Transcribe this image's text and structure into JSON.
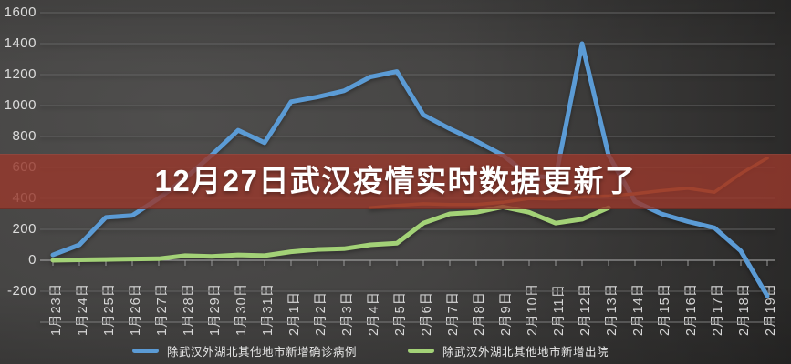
{
  "banner": {
    "text": "12月27日武汉疫情实时数据更新了",
    "bg": "#97382c",
    "text_color": "#ffffff"
  },
  "chart_data": {
    "type": "line",
    "title": "",
    "xlabel": "",
    "ylabel": "",
    "grid": "on",
    "legend_position": "bottom",
    "ylim": [
      -400,
      1600
    ],
    "ytick_step": 200,
    "yticks_labeled": [
      1600,
      1400,
      1200,
      1000,
      800,
      600,
      400,
      200,
      0,
      -200
    ],
    "categories": [
      "1月23日",
      "1月24日",
      "1月25日",
      "1月26日",
      "1月27日",
      "1月28日",
      "1月29日",
      "1月30日",
      "1月31日",
      "2月1日",
      "2月2日",
      "2月3日",
      "2月4日",
      "2月5日",
      "2月6日",
      "2月7日",
      "2月8日",
      "2月9日",
      "2月10日",
      "2月11日",
      "2月12日",
      "2月13日",
      "2月14日",
      "2月15日",
      "2月16日",
      "2月17日",
      "2月18日",
      "2月19日"
    ],
    "series": [
      {
        "name": "除武汉外湖北其他地市新增确诊病例",
        "color": "#5b9bd5",
        "in_legend": true,
        "values": [
          35,
          100,
          277,
          290,
          400,
          530,
          680,
          840,
          760,
          1025,
          1055,
          1095,
          1185,
          1220,
          940,
          850,
          770,
          680,
          545,
          535,
          1400,
          680,
          380,
          300,
          250,
          210,
          60,
          -230
        ]
      },
      {
        "name": "除武汉外湖北其他地市新增出院",
        "color": "#a3d277",
        "in_legend": true,
        "values": [
          0,
          3,
          5,
          8,
          10,
          30,
          25,
          35,
          30,
          55,
          70,
          75,
          100,
          110,
          240,
          300,
          310,
          345,
          310,
          240,
          265,
          340,
          null,
          null,
          null,
          null,
          null,
          null
        ]
      },
      {
        "name": "",
        "color": "#c4713a",
        "in_legend": false,
        "values": [
          null,
          null,
          null,
          null,
          null,
          null,
          null,
          null,
          null,
          null,
          null,
          null,
          340,
          355,
          365,
          360,
          360,
          375,
          400,
          395,
          410,
          415,
          430,
          450,
          465,
          440,
          560,
          660
        ]
      }
    ]
  }
}
